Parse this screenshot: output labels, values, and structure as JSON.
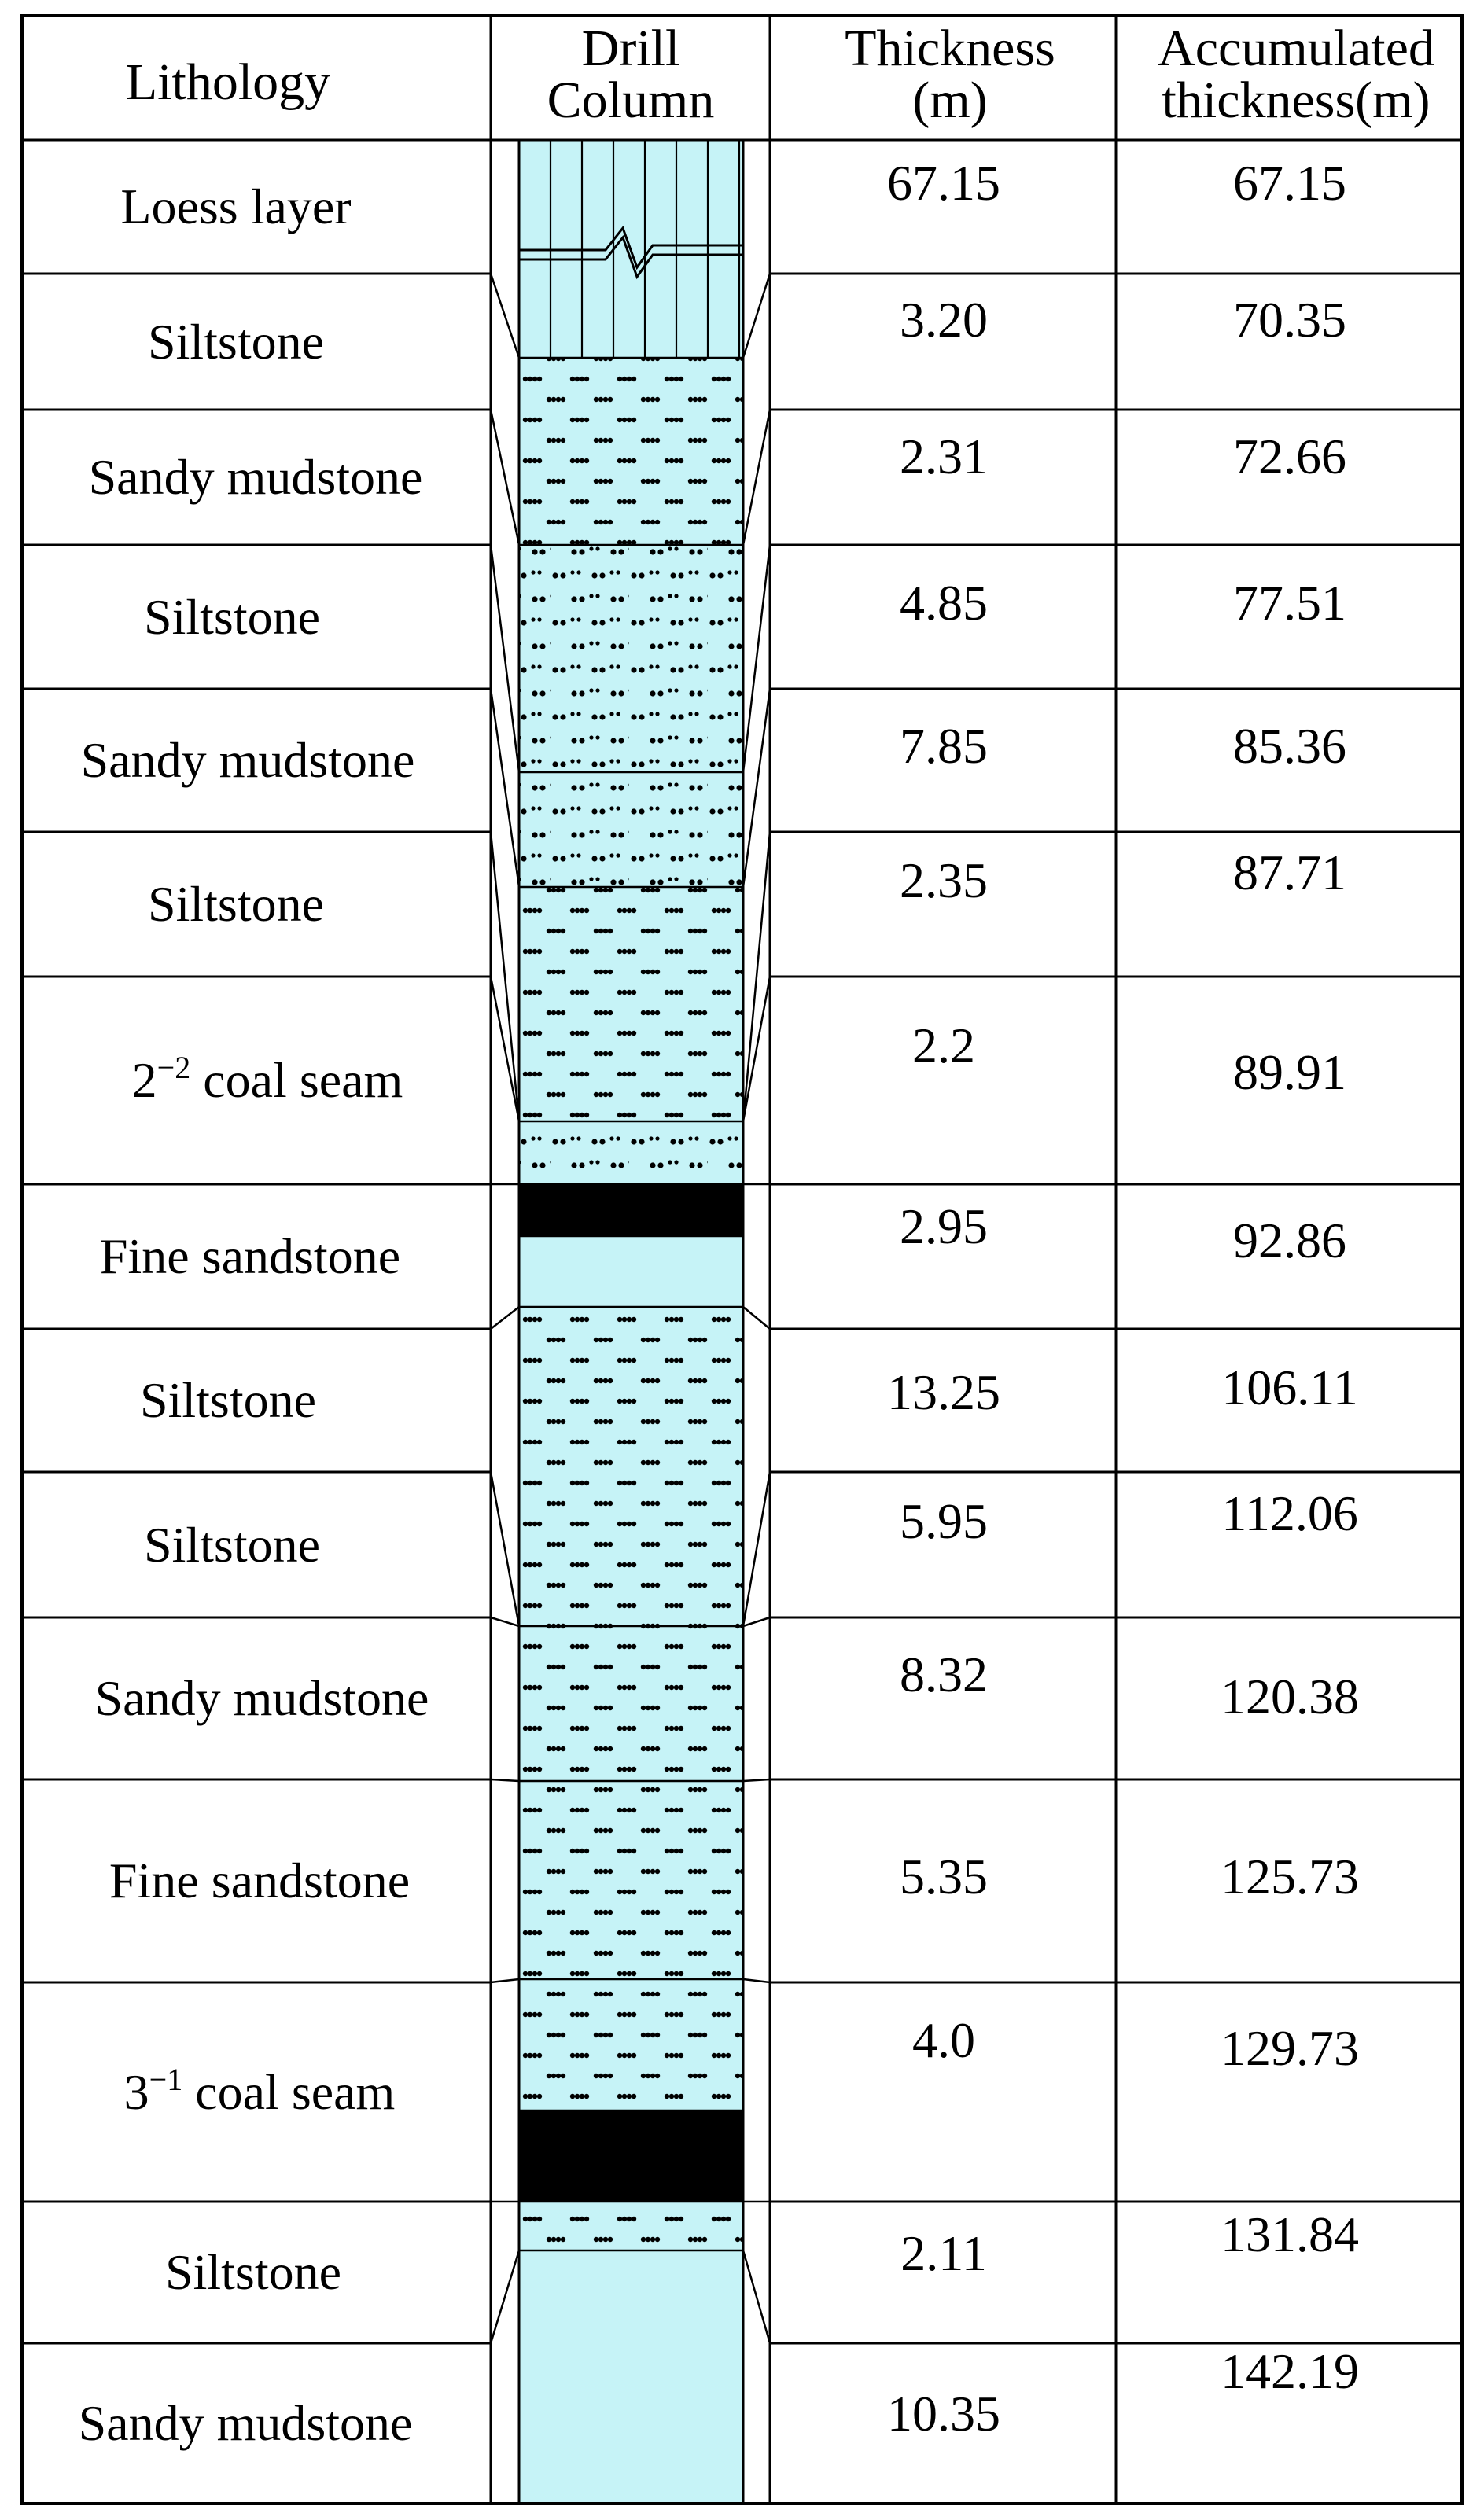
{
  "header": {
    "lithology": "Lithology",
    "drill_column_line1": "Drill",
    "drill_column_line2": "Column",
    "thickness_line1": "Thickness",
    "thickness_line2": "(m)",
    "accum_line1": "Accumulated",
    "accum_line2": "thickness(m)"
  },
  "colors": {
    "column_fill": "#c6f3f7",
    "coal": "#000000",
    "line": "#000000"
  },
  "rows": [
    {
      "lithology": "Loess layer",
      "thickness": "67.15",
      "accumulated": "67.15"
    },
    {
      "lithology": "Siltstone",
      "thickness": "3.20",
      "accumulated": "70.35"
    },
    {
      "lithology": "Sandy mudstone",
      "thickness": "2.31",
      "accumulated": "72.66"
    },
    {
      "lithology": "Siltstone",
      "thickness": "4.85",
      "accumulated": "77.51"
    },
    {
      "lithology": "Sandy mudstone",
      "thickness": "7.85",
      "accumulated": "85.36"
    },
    {
      "lithology": "Siltstone",
      "thickness": "2.35",
      "accumulated": "87.71"
    },
    {
      "lithology_base": "2",
      "lithology_sup": "−2",
      "lithology_rest": " coal seam",
      "thickness": "2.2",
      "accumulated": "89.91"
    },
    {
      "lithology": "Fine sandstone",
      "thickness": "2.95",
      "accumulated": "92.86"
    },
    {
      "lithology": "Siltstone",
      "thickness": "13.25",
      "accumulated": "106.11"
    },
    {
      "lithology": "Siltstone",
      "thickness": "5.95",
      "accumulated": "112.06"
    },
    {
      "lithology": "Sandy mudstone",
      "thickness": "8.32",
      "accumulated": "120.38"
    },
    {
      "lithology": "Fine sandstone",
      "thickness": "5.35",
      "accumulated": "125.73"
    },
    {
      "lithology_base": "3",
      "lithology_sup": "−1",
      "lithology_rest": " coal seam",
      "thickness": "4.0",
      "accumulated": "129.73"
    },
    {
      "lithology": "Siltstone",
      "thickness": "2.11",
      "accumulated": "131.84"
    },
    {
      "lithology": "Sandy mudstone",
      "thickness": "10.35",
      "accumulated": "142.19"
    }
  ]
}
